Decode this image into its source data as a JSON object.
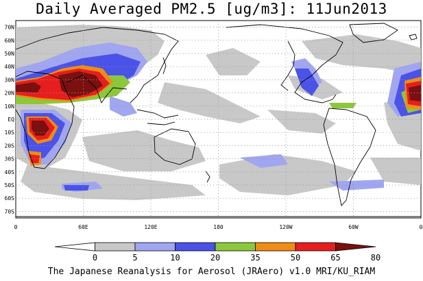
{
  "title": "Daily Averaged PM2.5 [ug/m3]: 11Jun2013",
  "footer": "The Japanese Reanalysis for Aerosol (JRAero) v1.0 MRI/KU_RIAM",
  "map": {
    "lat_labels": [
      "70N",
      "60N",
      "50N",
      "40N",
      "30N",
      "20N",
      "10N",
      "EQ",
      "10S",
      "20S",
      "30S",
      "40S",
      "50S",
      "60S",
      "70S"
    ],
    "lat_values": [
      70,
      60,
      50,
      40,
      30,
      20,
      10,
      0,
      -10,
      -20,
      -30,
      -40,
      -50,
      -60,
      -70
    ],
    "lon_labels": [
      "0",
      "60E",
      "120E",
      "180",
      "120W",
      "60W",
      "0"
    ],
    "lon_values": [
      0,
      60,
      120,
      180,
      240,
      300,
      360
    ],
    "lat_range": [
      -75,
      75
    ],
    "lon_range": [
      0,
      360
    ],
    "gridlines": "dotted"
  },
  "colorbar": {
    "ticks": [
      "0",
      "5",
      "10",
      "20",
      "35",
      "50",
      "65",
      "80"
    ],
    "colors": [
      "#ffffff",
      "#c8c8c8",
      "#a0a6f0",
      "#4a52e8",
      "#8cc83c",
      "#f08c14",
      "#e61e1e",
      "#7a1010"
    ]
  },
  "palette": {
    "ocean_land_bg": "#ffffff",
    "coast": "#000000",
    "grid": "#999999"
  }
}
